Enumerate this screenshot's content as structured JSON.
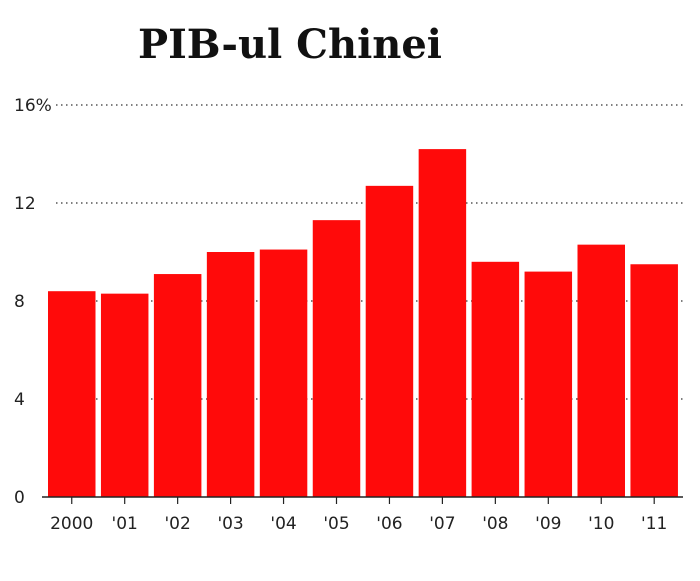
{
  "chart_data": {
    "type": "bar",
    "title": "PIB-ul Chinei",
    "categories": [
      "2000",
      "'01",
      "'02",
      "'03",
      "'04",
      "'05",
      "'06",
      "'07",
      "'08",
      "'09",
      "'10",
      "'11"
    ],
    "values": [
      8.4,
      8.3,
      9.1,
      10.0,
      10.1,
      11.3,
      12.7,
      14.2,
      9.6,
      9.2,
      10.3,
      9.5
    ],
    "y_ticks": [
      0,
      4,
      8,
      12,
      16
    ],
    "y_tick_labels": [
      "0",
      "4",
      "8",
      "12",
      "16%"
    ],
    "ylim": [
      0,
      16
    ],
    "xlabel": "",
    "ylabel": "",
    "grid": true,
    "bar_color": "#ff0a0a",
    "gridline_color": "#555555"
  }
}
